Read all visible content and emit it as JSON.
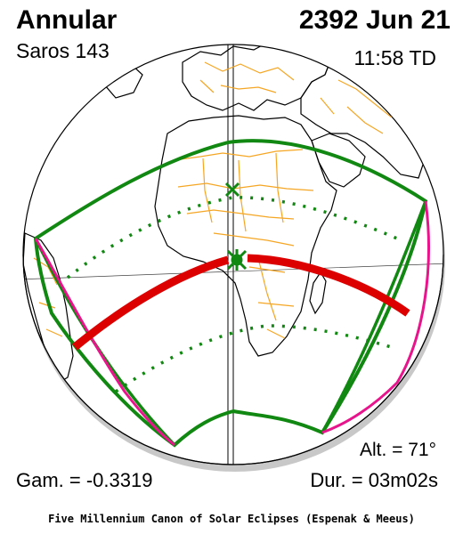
{
  "header": {
    "eclipse_type": "Annular",
    "saros": "Saros 143",
    "date": "2392 Jun 21",
    "time": "11:58 TD"
  },
  "footer": {
    "altitude": "Alt. = 71°",
    "gamma": "Gam. = -0.3319",
    "duration": "Dur. = 03m02s",
    "credit": "Five Millennium Canon of Solar Eclipses (Espenak & Meeus)"
  },
  "colors": {
    "central_path": "#dd0000",
    "penumbra_limits": "#118811",
    "rise_set_curves": "#e8148c",
    "coastlines": "#f5a623",
    "markers": "#118811"
  }
}
